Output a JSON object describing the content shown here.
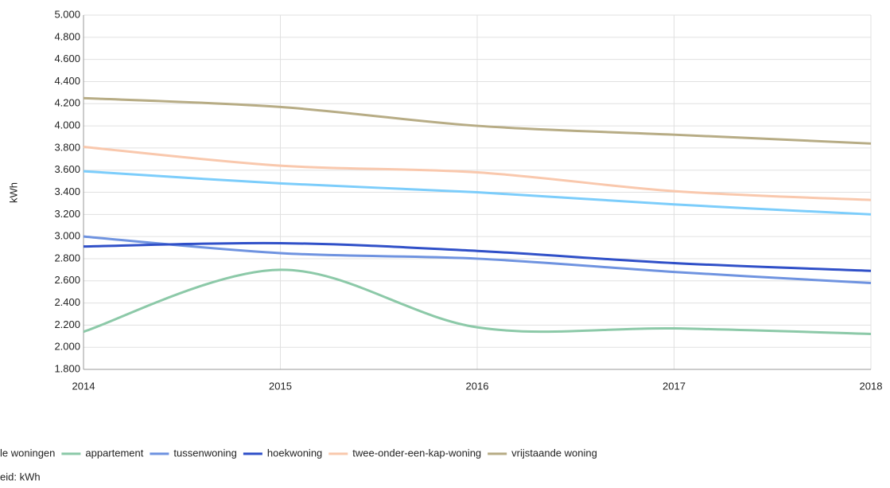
{
  "chart_data": {
    "type": "line",
    "y_label": "kWh",
    "footnote": "eid: kWh",
    "x": [
      2014,
      2015,
      2016,
      2017,
      2018
    ],
    "xlim": [
      2014,
      2018
    ],
    "xticks": [
      2014,
      2015,
      2016,
      2017,
      2018
    ],
    "ylim": [
      1800,
      5000
    ],
    "yticks": [
      {
        "value": 1800,
        "label": "1.800"
      },
      {
        "value": 2000,
        "label": "2.000"
      },
      {
        "value": 2200,
        "label": "2.200"
      },
      {
        "value": 2400,
        "label": "2.400"
      },
      {
        "value": 2600,
        "label": "2.600"
      },
      {
        "value": 2800,
        "label": "2.800"
      },
      {
        "value": 3000,
        "label": "3.000"
      },
      {
        "value": 3200,
        "label": "3.200"
      },
      {
        "value": 3400,
        "label": "3.400"
      },
      {
        "value": 3600,
        "label": "3.600"
      },
      {
        "value": 3800,
        "label": "3.800"
      },
      {
        "value": 4000,
        "label": "4.000"
      },
      {
        "value": 4200,
        "label": "4.200"
      },
      {
        "value": 4400,
        "label": "4.400"
      },
      {
        "value": 4600,
        "label": "4.600"
      },
      {
        "value": 4800,
        "label": "4.800"
      },
      {
        "value": 5000,
        "label": "5.000"
      }
    ],
    "grid": true,
    "series": [
      {
        "name": "le woningen",
        "color": "#7ccdfb",
        "values": [
          3590,
          3480,
          3400,
          3290,
          3200
        ]
      },
      {
        "name": "appartement",
        "color": "#8cc9a8",
        "values": [
          2140,
          2700,
          2180,
          2170,
          2120
        ]
      },
      {
        "name": "tussenwoning",
        "color": "#6f93e0",
        "values": [
          3000,
          2850,
          2800,
          2680,
          2580
        ]
      },
      {
        "name": "hoekwoning",
        "color": "#3050c8",
        "values": [
          2910,
          2940,
          2870,
          2760,
          2690
        ]
      },
      {
        "name": "twee-onder-een-kap-woning",
        "color": "#f9c8ad",
        "values": [
          3810,
          3640,
          3580,
          3410,
          3330
        ]
      },
      {
        "name": "vrijstaande woning",
        "color": "#b7ac85",
        "values": [
          4250,
          4170,
          4000,
          3920,
          3840
        ]
      }
    ]
  }
}
